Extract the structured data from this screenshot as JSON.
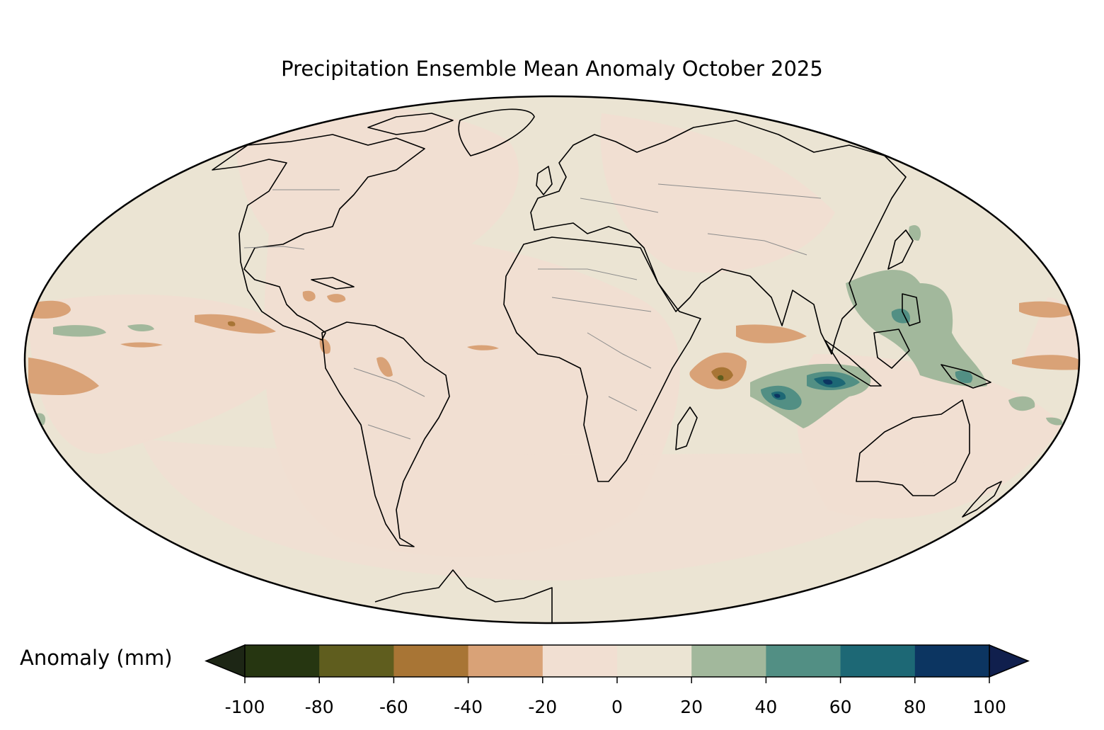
{
  "title": "Precipitation Ensemble Mean Anomaly October 2025",
  "projection": "Mollweide",
  "colorbar": {
    "label": "Anomaly (mm)",
    "ticks": [
      "-100",
      "-80",
      "-60",
      "-40",
      "-20",
      "0",
      "20",
      "40",
      "60",
      "80",
      "100"
    ],
    "bins": [
      {
        "range": "-100 to -80",
        "color": "#263611"
      },
      {
        "range": "-80 to -60",
        "color": "#5f5d1e"
      },
      {
        "range": "-60 to -40",
        "color": "#a87535"
      },
      {
        "range": "-40 to -20",
        "color": "#d9a277"
      },
      {
        "range": "-20 to 0",
        "color": "#f1dfd2"
      },
      {
        "range": "0 to 20",
        "color": "#ebe4d3"
      },
      {
        "range": "20 to 40",
        "color": "#a2b89c"
      },
      {
        "range": "40 to 60",
        "color": "#528f84"
      },
      {
        "range": "60 to 80",
        "color": "#1d6875"
      },
      {
        "range": "80 to 100",
        "color": "#0c3561"
      }
    ],
    "under_color": "#1d2615",
    "over_color": "#101f4d",
    "extend": "both"
  },
  "colors": {
    "land_outline": "#000000",
    "country_border": "#8c8c8c",
    "background_field": "#ebe4d3"
  }
}
